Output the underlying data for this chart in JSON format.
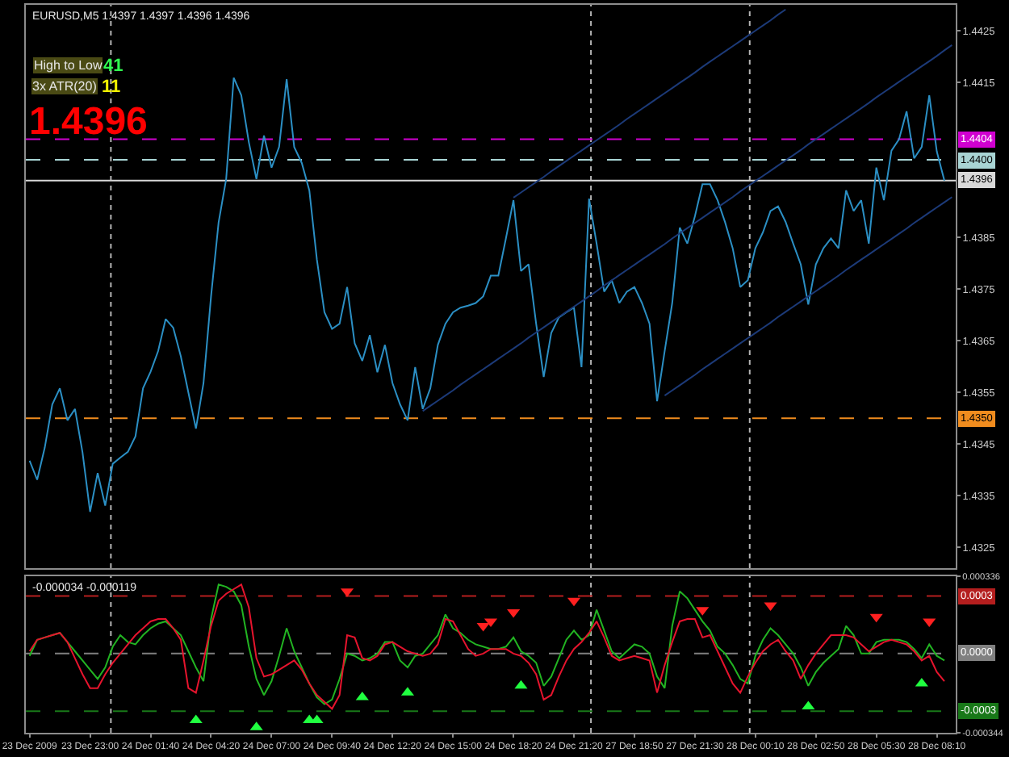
{
  "chart_data": [
    {
      "type": "line",
      "title": "EURUSD,M5 1.4397 1.4397 1.4396 1.4396",
      "tick_labels": "y",
      "categories": [
        null,
        null,
        null,
        null,
        null,
        null,
        null,
        null,
        null,
        null,
        null,
        null,
        null,
        null,
        null,
        null,
        null,
        null,
        null,
        null,
        null,
        null,
        null,
        null,
        null,
        null,
        null,
        null,
        null,
        null,
        null,
        null,
        null,
        null,
        null,
        null,
        null,
        null,
        null,
        null,
        null,
        null,
        null,
        null,
        null,
        null,
        null,
        null,
        null,
        null,
        null,
        null,
        null,
        null,
        null,
        null,
        null,
        null,
        null,
        null,
        null,
        null,
        null,
        null,
        null,
        null,
        null,
        null,
        null,
        null,
        null,
        null,
        null,
        null,
        null,
        null,
        null,
        null,
        null,
        null,
        null,
        null,
        null,
        null,
        null,
        null,
        null,
        null,
        null,
        null,
        null,
        null,
        null,
        null,
        null,
        null,
        null,
        null,
        null,
        null,
        null,
        null,
        null,
        null,
        null,
        null,
        null,
        null,
        null,
        null,
        null,
        null,
        null,
        null,
        null,
        null,
        null,
        null,
        null,
        null,
        null,
        null,
        null
      ],
      "ylim": [
        1.4321,
        1.443
      ],
      "yticks": [
        1.4325,
        1.4335,
        1.4345,
        1.4355,
        1.4365,
        1.4375,
        1.4385,
        1.4415,
        1.4425
      ],
      "series": [
        {
          "color": "#2b8fc4",
          "values": [
            1.43418,
            1.43381,
            1.43443,
            1.43527,
            1.43558,
            1.43496,
            1.43518,
            1.43434,
            1.43319,
            1.43394,
            1.43331,
            1.43412,
            1.43424,
            1.43435,
            1.43465,
            1.43558,
            1.4359,
            1.4363,
            1.43692,
            1.43675,
            1.4362,
            1.4355,
            1.4348,
            1.43568,
            1.43736,
            1.43879,
            1.43963,
            1.44159,
            1.44125,
            1.44034,
            1.43963,
            1.44047,
            1.43985,
            1.44025,
            1.44156,
            1.44025,
            1.43994,
            1.43941,
            1.43807,
            1.43705,
            1.43673,
            1.43683,
            1.43754,
            1.43645,
            1.43611,
            1.43661,
            1.43589,
            1.43642,
            1.43568,
            1.43527,
            1.43496,
            1.43599,
            1.43518,
            1.43558,
            1.43642,
            1.43683,
            1.43705,
            1.43714,
            1.43718,
            1.43723,
            1.43736,
            1.43776,
            1.43776,
            1.43848,
            1.43922,
            1.43785,
            1.43798,
            1.43683,
            1.4358,
            1.43665,
            1.43695,
            1.43705,
            1.43714,
            1.43599,
            1.43925,
            1.43838,
            1.43745,
            1.43767,
            1.43723,
            1.43745,
            1.43754,
            1.43723,
            1.43683,
            1.43533,
            1.4363,
            1.43723,
            1.43869,
            1.43838,
            1.43891,
            1.43953,
            1.43953,
            1.43922,
            1.43879,
            1.43829,
            1.43754,
            1.43767,
            1.43829,
            1.4386,
            1.43901,
            1.4391,
            1.4388,
            1.43838,
            1.43798,
            1.4372,
            1.43798,
            1.43829,
            1.43848,
            1.43829,
            1.43941,
            1.43901,
            1.43922,
            1.43838,
            1.43985,
            1.43922,
            1.44018,
            1.4404,
            1.44094,
            1.44003,
            1.44025,
            1.44125,
            1.44016,
            1.4396,
            null
          ]
        },
        {
          "type": "line",
          "color": "#1c3a78",
          "values": [
            null,
            null,
            null,
            null,
            null,
            null,
            null,
            null,
            null,
            null,
            null,
            null,
            null,
            null,
            null,
            null,
            null,
            null,
            null,
            null,
            null,
            null,
            null,
            null,
            null,
            null,
            null,
            null,
            null,
            null,
            null,
            null,
            null,
            null,
            null,
            null,
            null,
            null,
            null,
            null,
            null,
            null,
            null,
            null,
            null,
            null,
            null,
            null,
            null,
            null,
            null,
            null,
            null,
            null,
            null,
            null,
            null,
            null,
            null,
            null,
            null,
            null,
            null,
            null,
            1.43927,
            1.43937,
            1.43947,
            1.43957,
            1.43967,
            1.43978,
            1.43988,
            1.43998,
            1.44008,
            1.44018,
            1.44028,
            1.44038,
            1.44048,
            1.44058,
            1.44068,
            1.44079,
            1.44089,
            1.44099,
            1.44109,
            1.44119,
            1.44129,
            1.44139,
            1.44149,
            1.44159,
            1.44169,
            1.4418,
            1.4419,
            1.442,
            1.4421,
            1.4422,
            1.4423,
            1.4424,
            1.4425,
            1.4426,
            1.4427,
            1.44281,
            1.44291,
            null,
            null,
            null,
            null,
            null,
            null,
            null,
            null,
            null,
            null,
            null,
            null,
            null,
            null,
            null,
            null,
            null,
            null,
            null,
            null,
            null,
            null
          ]
        },
        {
          "type": "line",
          "color": "#1c3a78",
          "values": [
            null,
            null,
            null,
            null,
            null,
            null,
            null,
            null,
            null,
            null,
            null,
            null,
            null,
            null,
            null,
            null,
            null,
            null,
            null,
            null,
            null,
            null,
            null,
            null,
            null,
            null,
            null,
            null,
            null,
            null,
            null,
            null,
            null,
            null,
            null,
            null,
            null,
            null,
            null,
            null,
            null,
            null,
            null,
            null,
            null,
            null,
            null,
            null,
            null,
            null,
            null,
            null,
            1.43514,
            1.43524,
            1.43534,
            1.43544,
            1.43554,
            1.43565,
            1.43575,
            1.43585,
            1.43595,
            1.43605,
            1.43615,
            1.43625,
            1.43635,
            1.43645,
            1.43656,
            1.43666,
            1.43676,
            1.43686,
            1.43696,
            1.43706,
            1.43716,
            1.43726,
            1.43736,
            1.43746,
            1.43757,
            1.43767,
            1.43777,
            1.43787,
            1.43797,
            1.43807,
            1.43817,
            1.43827,
            1.43837,
            1.43848,
            1.43858,
            1.43868,
            1.43878,
            1.43888,
            1.43898,
            1.43908,
            1.43918,
            1.43928,
            1.43939,
            1.43949,
            1.43959,
            1.43969,
            1.43979,
            1.43989,
            1.43999,
            1.44009,
            1.44019,
            1.4403,
            1.4404,
            1.4405,
            1.4406,
            1.4407,
            1.4408,
            1.4409,
            1.441,
            1.4411,
            1.44121,
            1.44131,
            1.44141,
            1.44151,
            1.44161,
            1.44171,
            1.44181,
            1.44191,
            1.44201,
            1.44212,
            1.44222
          ]
        },
        {
          "type": "line",
          "color": "#1c3a78",
          "values": [
            null,
            null,
            null,
            null,
            null,
            null,
            null,
            null,
            null,
            null,
            null,
            null,
            null,
            null,
            null,
            null,
            null,
            null,
            null,
            null,
            null,
            null,
            null,
            null,
            null,
            null,
            null,
            null,
            null,
            null,
            null,
            null,
            null,
            null,
            null,
            null,
            null,
            null,
            null,
            null,
            null,
            null,
            null,
            null,
            null,
            null,
            null,
            null,
            null,
            null,
            null,
            null,
            null,
            null,
            null,
            null,
            null,
            null,
            null,
            null,
            null,
            null,
            null,
            null,
            null,
            null,
            null,
            null,
            null,
            null,
            null,
            null,
            null,
            null,
            null,
            null,
            null,
            null,
            null,
            null,
            null,
            null,
            null,
            null,
            1.43544,
            1.43554,
            1.43564,
            1.43574,
            1.43584,
            1.43595,
            1.43605,
            1.43615,
            1.43625,
            1.43635,
            1.43645,
            1.43655,
            1.43665,
            1.43675,
            1.43685,
            1.43696,
            1.43706,
            1.43716,
            1.43726,
            1.43736,
            1.43746,
            1.43756,
            1.43766,
            1.43776,
            1.43787,
            1.43797,
            1.43807,
            1.43817,
            1.43827,
            1.43837,
            1.43847,
            1.43857,
            1.43867,
            1.43878,
            1.43888,
            1.43898,
            1.43908,
            1.43918,
            1.43928
          ]
        }
      ],
      "ref_lines": [
        {
          "axis": "y",
          "value": 1.4404,
          "label": "1.4404",
          "color": "#d000d0",
          "line_style": "dashed"
        },
        {
          "axis": "y",
          "value": 1.44,
          "label": "1.4400",
          "color": "#a8d4d4",
          "line_style": "dashed"
        },
        {
          "axis": "y",
          "value": 1.4396,
          "label": "1.4396",
          "color": "#d8d8d8",
          "line_style": "solid"
        },
        {
          "axis": "y",
          "value": 1.435,
          "label": "1.4350",
          "color": "#f08c1e",
          "line_style": "dashed"
        }
      ],
      "annotations": [
        "High to Low",
        "41",
        "3x ATR(20)",
        "11",
        "1.4396"
      ]
    },
    {
      "type": "line",
      "title": "-0.000034 -0.000119",
      "categories": [
        "23 Dec 2009",
        null,
        null,
        null,
        null,
        null,
        null,
        null,
        "23 Dec 23:00",
        null,
        null,
        null,
        null,
        null,
        null,
        null,
        "24 Dec 01:40",
        null,
        null,
        null,
        null,
        null,
        null,
        null,
        "24 Dec 04:20",
        null,
        null,
        null,
        null,
        null,
        null,
        null,
        "24 Dec 07:00",
        null,
        null,
        null,
        null,
        null,
        null,
        null,
        "24 Dec 09:40",
        null,
        null,
        null,
        null,
        null,
        null,
        null,
        "24 Dec 12:20",
        null,
        null,
        null,
        null,
        null,
        null,
        null,
        "24 Dec 15:00",
        null,
        null,
        null,
        null,
        null,
        null,
        null,
        "24 Dec 18:20",
        null,
        null,
        null,
        null,
        null,
        null,
        null,
        "24 Dec 21:20",
        null,
        null,
        null,
        null,
        null,
        null,
        null,
        "27 Dec 18:50",
        null,
        null,
        null,
        null,
        null,
        null,
        null,
        "27 Dec 21:30",
        null,
        null,
        null,
        null,
        null,
        null,
        null,
        "28 Dec 00:10",
        null,
        null,
        null,
        null,
        null,
        null,
        null,
        "28 Dec 02:50",
        null,
        null,
        null,
        null,
        null,
        null,
        null,
        "28 Dec 05:30",
        null,
        null,
        null,
        null,
        null,
        null,
        null,
        "28 Dec 08:10",
        null,
        null
      ],
      "ylim": [
        -0.000344,
        0.000336
      ],
      "yticks": [
        0.000336,
        -0.000344
      ],
      "series": [
        {
          "color": "#22b422",
          "values": [
            -1e-05,
            6e-05,
            7e-05,
            8e-05,
            9e-05,
            5e-05,
            1e-05,
            -3e-05,
            -7e-05,
            -0.00011,
            -6e-05,
            3e-05,
            8e-05,
            5e-05,
            4e-05,
            8e-05,
            0.00011,
            0.00013,
            0.00014,
            0.00011,
            8e-05,
            1e-05,
            -6e-05,
            -0.00012,
            0.00015,
            0.0003,
            0.00029,
            0.00027,
            0.00021,
            3e-05,
            -0.00011,
            -0.00018,
            -0.00012,
            -1e-05,
            0.00011,
            1e-05,
            -6e-05,
            -0.00013,
            -0.00019,
            -0.00022,
            -0.0002,
            -0.00011,
            0,
            -1e-05,
            -3e-05,
            -2e-05,
            0,
            5e-05,
            5e-05,
            -3e-05,
            -6e-05,
            -1e-05,
            0,
            4e-05,
            8e-05,
            0.00017,
            0.00011,
            9e-05,
            6e-05,
            4e-05,
            3e-05,
            2e-05,
            2e-05,
            3e-05,
            7e-05,
            1e-05,
            -1e-05,
            -4e-05,
            -0.00014,
            -0.0001,
            -2e-05,
            6e-05,
            0.0001,
            6e-05,
            8e-05,
            0.00019,
            0.0001,
            1e-05,
            -2e-05,
            1e-05,
            4e-05,
            3e-05,
            0,
            -0.0001,
            -0.00015,
            0.00012,
            0.00027,
            0.00024,
            0.00019,
            0.00014,
            0.0001,
            3e-05,
            0,
            -5e-05,
            -0.00011,
            -0.00013,
            -1e-05,
            6e-05,
            0.00011,
            8e-05,
            4e-05,
            0,
            -6e-05,
            -0.00014,
            -8e-05,
            -4e-05,
            -1e-05,
            2e-05,
            0.00012,
            8e-05,
            0,
            0,
            5e-05,
            6e-05,
            6e-05,
            6e-05,
            5e-05,
            2e-05,
            -2e-05,
            4e-05,
            -1e-05,
            -3e-05,
            null
          ]
        },
        {
          "color": "#e6142d",
          "values": [
            1e-05,
            6e-05,
            7e-05,
            8e-05,
            9e-05,
            5e-05,
            -2e-05,
            -9e-05,
            -0.00015,
            -0.00015,
            -9e-05,
            -4e-05,
            0,
            4e-05,
            8e-05,
            0.00011,
            0.00014,
            0.00015,
            0.00015,
            0.00011,
            6e-05,
            -0.00015,
            -0.00017,
            -3e-05,
            0.00012,
            0.00023,
            0.00026,
            0.00028,
            0.0003,
            0.0002,
            -2e-05,
            -0.0001,
            -9e-05,
            -7e-05,
            -5e-05,
            -3e-05,
            -7e-05,
            -0.00013,
            -0.00018,
            -0.00021,
            -0.00024,
            -0.00018,
            8e-05,
            7e-05,
            -2e-05,
            -3e-05,
            -1e-05,
            4e-05,
            5e-05,
            3e-05,
            1e-05,
            0,
            -1e-05,
            0,
            4e-05,
            0.00015,
            0.00014,
            8e-05,
            2e-05,
            -1e-05,
            0,
            2e-05,
            2e-05,
            2e-05,
            0,
            -1e-05,
            -4e-05,
            -9e-05,
            -0.0002,
            -0.00018,
            -0.0001,
            -3e-05,
            2e-05,
            5e-05,
            9e-05,
            0.00014,
            7e-05,
            -1e-05,
            -3e-05,
            -2e-05,
            -1e-05,
            -2e-05,
            -3e-05,
            -0.00017,
            -5e-05,
            5e-05,
            0.00014,
            0.00015,
            0.00015,
            7e-05,
            8e-05,
            1e-05,
            -6e-05,
            -0.00013,
            -0.00017,
            -0.0001,
            -4e-05,
            1e-05,
            4e-05,
            6e-05,
            1e-05,
            -3e-05,
            -0.00011,
            -5e-05,
            0,
            4e-05,
            8e-05,
            8e-05,
            8e-05,
            7e-05,
            4e-05,
            1e-05,
            3e-05,
            5e-05,
            6e-05,
            5e-05,
            4e-05,
            1e-05,
            -3e-05,
            -1e-05,
            -8e-05,
            -0.00012,
            null
          ]
        },
        {
          "type": "scatter",
          "marker": "triangle",
          "color": "#ff2020",
          "values": [
            null,
            null,
            null,
            null,
            null,
            null,
            null,
            null,
            null,
            null,
            null,
            null,
            null,
            null,
            null,
            null,
            null,
            null,
            null,
            null,
            null,
            null,
            null,
            null,
            null,
            null,
            null,
            null,
            null,
            null,
            null,
            null,
            null,
            null,
            null,
            null,
            null,
            null,
            null,
            null,
            null,
            null,
            0.00027,
            null,
            null,
            null,
            null,
            null,
            null,
            null,
            null,
            null,
            null,
            null,
            null,
            null,
            null,
            null,
            null,
            null,
            0.00012,
            0.00014,
            null,
            null,
            0.00018,
            null,
            null,
            null,
            null,
            null,
            null,
            null,
            0.00023,
            null,
            null,
            null,
            null,
            null,
            null,
            null,
            null,
            null,
            null,
            null,
            null,
            null,
            null,
            null,
            null,
            0.00019,
            null,
            null,
            null,
            null,
            null,
            null,
            null,
            null,
            0.00021,
            null,
            null,
            null,
            null,
            null,
            null,
            null,
            null,
            null,
            null,
            null,
            null,
            null,
            0.00016,
            null,
            null,
            null,
            null,
            null,
            null,
            0.00014,
            null,
            null,
            null
          ]
        },
        {
          "type": "scatter",
          "marker": "triangle",
          "color": "#20ff40",
          "values": [
            null,
            null,
            null,
            null,
            null,
            null,
            null,
            null,
            null,
            null,
            null,
            null,
            null,
            null,
            null,
            null,
            null,
            null,
            null,
            null,
            null,
            null,
            -0.00029,
            null,
            null,
            null,
            null,
            null,
            null,
            null,
            -0.00032,
            null,
            null,
            null,
            null,
            null,
            null,
            -0.00029,
            -0.00029,
            null,
            null,
            null,
            null,
            null,
            -0.00019,
            null,
            null,
            null,
            null,
            null,
            -0.00017,
            null,
            null,
            null,
            null,
            null,
            null,
            null,
            null,
            null,
            null,
            null,
            null,
            null,
            null,
            -0.00014,
            null,
            null,
            null,
            null,
            null,
            null,
            null,
            null,
            null,
            null,
            null,
            null,
            null,
            null,
            null,
            null,
            null,
            null,
            null,
            null,
            null,
            null,
            null,
            null,
            null,
            null,
            null,
            null,
            null,
            null,
            null,
            null,
            null,
            null,
            null,
            null,
            null,
            -0.00023,
            null,
            null,
            null,
            null,
            null,
            null,
            null,
            null,
            null,
            null,
            null,
            null,
            null,
            null,
            -0.00013,
            null,
            null,
            null,
            null
          ]
        }
      ],
      "ref_lines": [
        {
          "axis": "y",
          "value": 0.00025,
          "label": "0.0003",
          "color": "#b41e1e",
          "line_style": "dashed"
        },
        {
          "axis": "y",
          "value": 0,
          "label": "0.0000",
          "color": "#808080",
          "line_style": "dashed"
        },
        {
          "axis": "y",
          "value": -0.00025,
          "label": "-0.0003",
          "color": "#187818",
          "line_style": "dashed"
        }
      ]
    }
  ]
}
